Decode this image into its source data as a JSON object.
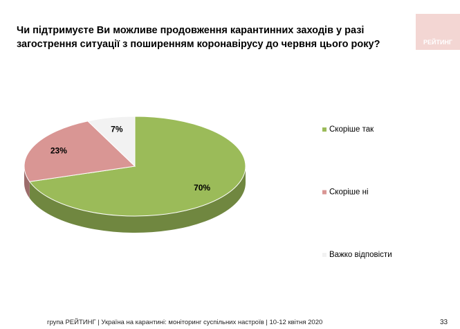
{
  "chart_data": {
    "type": "pie3d",
    "title": "Чи підтримуєте Ви можливе продовження карантинних заходів у разі загострення ситуації з поширенням коронавірусу до червня цього року?",
    "categories": [
      "Скоріше  так",
      "Скоріше  ні",
      "Важко відповісти"
    ],
    "values": [
      70,
      23,
      7
    ],
    "value_labels": [
      "70%",
      "23%",
      "7%"
    ],
    "colors": [
      "#9bbb59",
      "#d99694",
      "#f2f2f2"
    ]
  },
  "footer": "група РЕЙТИНГ | Україна на карантині: моніторинг суспільних настроїв  | 10-12 квітня  2020",
  "page_number": "33",
  "logo": "РЕЙТИНГ"
}
